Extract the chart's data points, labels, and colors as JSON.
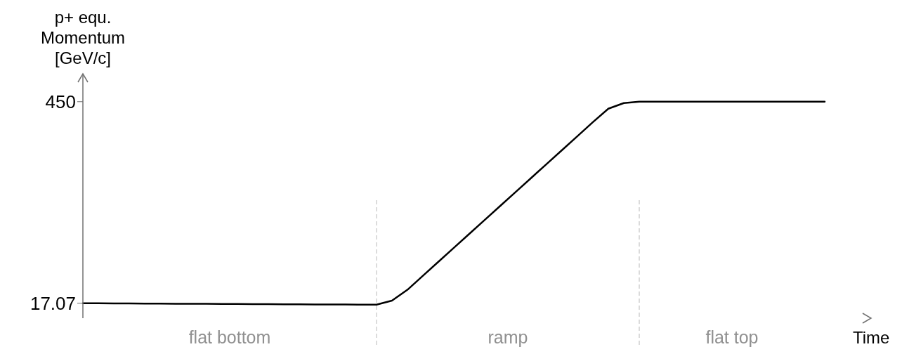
{
  "chart_data": {
    "type": "line",
    "ylabel": "p+ equ. Momentum [GeV/c]",
    "xlabel": "Time",
    "categories": [
      null,
      null,
      null,
      null,
      null,
      null,
      null,
      null,
      null,
      null,
      null,
      null,
      null,
      null,
      null,
      null,
      null,
      null,
      null,
      null,
      null,
      null,
      null,
      null,
      null,
      null,
      null,
      null,
      null,
      null,
      null,
      null,
      null,
      null,
      null,
      null,
      null,
      null,
      null,
      null,
      null,
      null,
      null,
      null,
      null,
      null,
      null,
      null,
      null,
      null,
      null,
      null
    ],
    "series": [
      {
        "color": "#000000",
        "values": [
          17.07,
          16.9,
          16.7,
          16.6,
          16.4,
          16.3,
          16.1,
          15.9,
          15.8,
          15.6,
          15.4,
          15.3,
          15.1,
          14.9,
          14.8,
          14.6,
          14.4,
          14.3,
          14.1,
          14,
          22.7,
          46,
          76,
          106,
          136,
          166,
          196,
          226,
          256,
          286,
          316,
          346,
          376,
          406,
          435,
          447,
          450,
          450,
          450,
          450,
          450,
          450,
          450,
          450,
          450,
          450,
          450,
          450,
          450,
          null,
          null,
          null
        ]
      }
    ],
    "ylim": [
      -15,
      510
    ],
    "yticks": [
      17.07,
      450
    ],
    "tick_labels": "y",
    "grid": false,
    "marker": "none",
    "line_style": "solid",
    "annotations": [
      "flat bottom",
      "ramp",
      "flat top"
    ]
  }
}
